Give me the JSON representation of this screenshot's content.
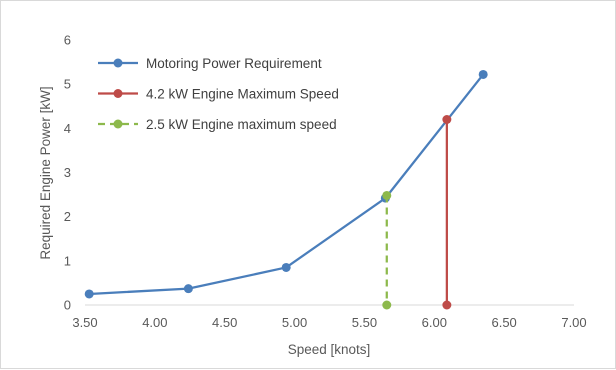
{
  "chart_data": {
    "type": "scatter",
    "title": "",
    "xlabel": "Speed [knots]",
    "ylabel": "Required Engine Power [kW]",
    "xlim": [
      3.5,
      7.0
    ],
    "ylim": [
      0,
      6
    ],
    "x_ticks": [
      "3.50",
      "4.00",
      "4.50",
      "5.00",
      "5.50",
      "6.00",
      "6.50",
      "7.00"
    ],
    "y_ticks": [
      "0",
      "1",
      "2",
      "3",
      "4",
      "5",
      "6"
    ],
    "grid": false,
    "legend_position": "top-left",
    "series": [
      {
        "name": "Motoring Power Requirement",
        "color": "#4a7ebb",
        "dash": false,
        "points": [
          {
            "x": 3.53,
            "y": 0.25
          },
          {
            "x": 4.24,
            "y": 0.37
          },
          {
            "x": 4.94,
            "y": 0.85
          },
          {
            "x": 5.65,
            "y": 2.42
          },
          {
            "x": 6.35,
            "y": 5.22
          }
        ]
      },
      {
        "name": "4.2 kW Engine Maximum Speed",
        "color": "#be4b48",
        "dash": false,
        "points": [
          {
            "x": 6.09,
            "y": 4.2
          },
          {
            "x": 6.09,
            "y": 0.0
          }
        ]
      },
      {
        "name": "2.5 kW Engine maximum speed",
        "color": "#8db94c",
        "dash": true,
        "points": [
          {
            "x": 5.66,
            "y": 2.48
          },
          {
            "x": 5.66,
            "y": 0.0
          }
        ]
      }
    ]
  }
}
